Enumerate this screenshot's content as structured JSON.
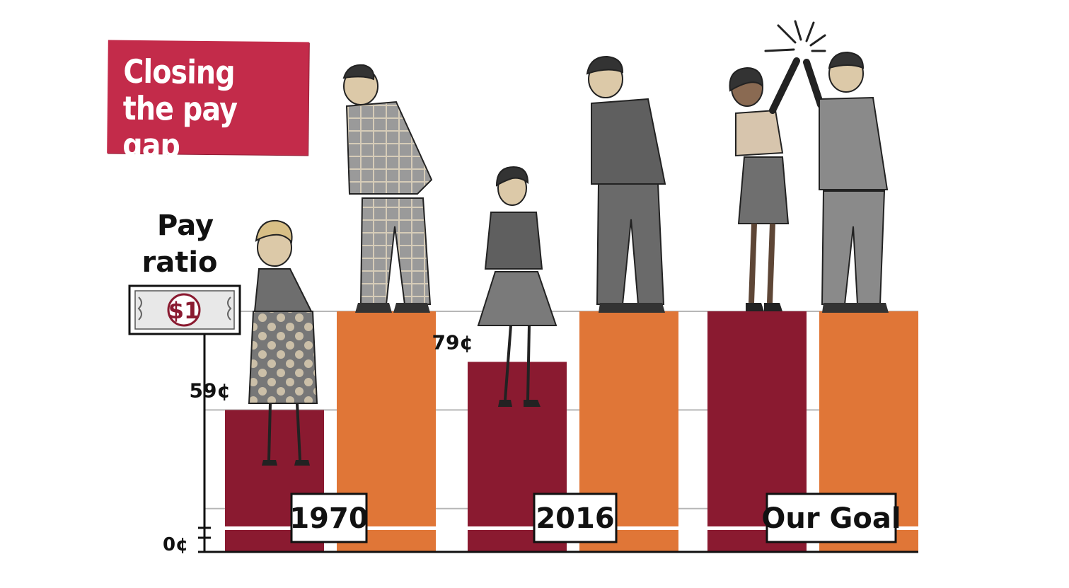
{
  "title": "Closing the pay gap",
  "y_axis_label_line1": "Pay",
  "y_axis_label_line2": "ratio",
  "dollar_label": "$1",
  "zero_label": "0¢",
  "colors": {
    "women": "#8a1a30",
    "men": "#e07637",
    "title_bg": "#c32b4a",
    "grid": "#b7b7b7"
  },
  "chart_data": {
    "type": "bar",
    "categories": [
      "1970",
      "2016",
      "Our Goal"
    ],
    "series": [
      {
        "values": [
          59,
          79,
          100
        ]
      },
      {
        "values": [
          100,
          100,
          100
        ]
      }
    ],
    "data_labels": [
      "59¢",
      "79¢",
      ""
    ],
    "unit": "¢",
    "ylim": [
      0,
      100
    ],
    "grid": true
  }
}
